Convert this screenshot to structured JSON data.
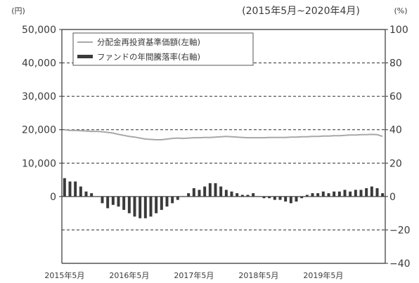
{
  "chart_data": {
    "type": "bar+line",
    "period": "(2015年5月~2020年4月)",
    "left_axis": {
      "unit": "(円)",
      "range": [
        -20000,
        50000
      ],
      "ticks": [
        0,
        10000,
        20000,
        30000,
        40000,
        50000
      ],
      "tick_labels": [
        "0",
        "10,000",
        "20,000",
        "30,000",
        "40,000",
        "50,000"
      ]
    },
    "right_axis": {
      "unit": "(%)",
      "range": [
        -40,
        100
      ],
      "ticks": [
        -40,
        -20,
        0,
        20,
        40,
        60,
        80,
        100
      ],
      "tick_labels": [
        "−40",
        "−20",
        "0",
        "20",
        "40",
        "60",
        "80",
        "100"
      ]
    },
    "x_labels": [
      "2015年5月",
      "2016年5月",
      "2017年5月",
      "2018年5月",
      "2019年5月"
    ],
    "grid": "dashed horizontal at right-axis −20, 20, 40, 60, 80",
    "legend": {
      "position": "top-left",
      "items": [
        {
          "label": "分配金再投資基準価額(左軸)",
          "kind": "line"
        },
        {
          "label": "ファンドの年間騰落率(右軸)",
          "kind": "bar"
        }
      ]
    },
    "series": [
      {
        "name": "分配金再投資基準価額(左軸)",
        "axis": "left",
        "color": "#a8a8a8",
        "values": [
          20000,
          19800,
          19800,
          19700,
          19600,
          19500,
          19500,
          19400,
          19200,
          19000,
          18600,
          18300,
          18000,
          17800,
          17500,
          17200,
          17100,
          17000,
          17000,
          17200,
          17400,
          17500,
          17400,
          17500,
          17600,
          17600,
          17700,
          17700,
          17800,
          17900,
          18000,
          17900,
          17800,
          17700,
          17600,
          17600,
          17600,
          17600,
          17700,
          17700,
          17700,
          17700,
          17800,
          17800,
          17900,
          17900,
          18000,
          18000,
          18100,
          18100,
          18200,
          18200,
          18300,
          18400,
          18400,
          18500,
          18500,
          18600,
          18500,
          18000
        ]
      },
      {
        "name": "ファンドの年間騰落率(右軸)",
        "axis": "right",
        "color": "#3a3a3a",
        "values": [
          11,
          9,
          9,
          6,
          3,
          2,
          0,
          -4,
          -7,
          -5,
          -6,
          -8,
          -10,
          -12,
          -13,
          -13,
          -12,
          -10,
          -8,
          -6,
          -4,
          -2,
          0,
          2,
          5,
          4,
          6,
          8,
          8,
          6,
          4,
          3,
          2,
          1,
          1,
          2,
          0,
          -1,
          -1,
          -2,
          -2,
          -3,
          -4,
          -3,
          -1,
          1,
          2,
          2,
          3,
          2,
          3,
          3,
          4,
          3,
          4,
          4,
          5,
          6,
          5,
          2
        ]
      }
    ]
  }
}
